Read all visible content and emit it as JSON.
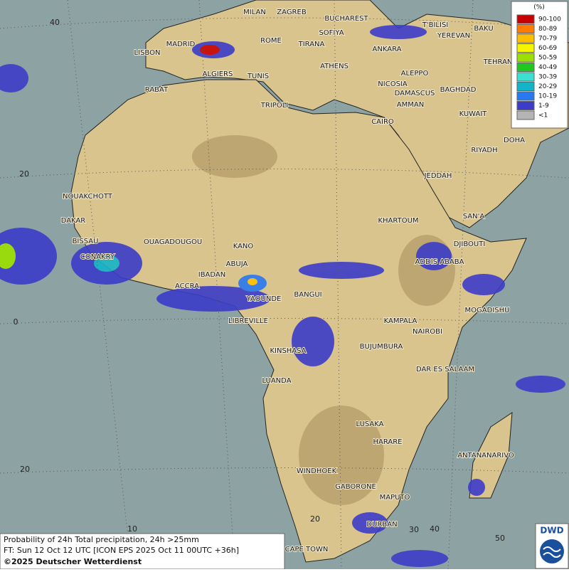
{
  "map": {
    "cities": [
      "MILAN",
      "ZAGREB",
      "BUCHAREST",
      "T'BILISI",
      "BAKU",
      "ROME",
      "SOFIYA",
      "YEREVAN",
      "MADRID",
      "TIRANA",
      "ANKARA",
      "LISBON",
      "TEHRAN",
      "ATHENS",
      "ALGIERS",
      "TUNIS",
      "ALEPPO",
      "RABAT",
      "NICOSIA",
      "BAGHDAD",
      "DAMASCUS",
      "TRIPOLI",
      "AMMAN",
      "KUWAIT",
      "CAIRO",
      "DOHA",
      "RIYADH",
      "JEDDAH",
      "NOUAKCHOTT",
      "SAN'A",
      "DAKAR",
      "KHARTOUM",
      "BISSAU",
      "OUAGADOUGOU",
      "DJIBOUTI",
      "KANO",
      "ABUJA",
      "CONAKRY",
      "ADDIS ABABA",
      "IBADAN",
      "ACCRA",
      "YAOUNDE",
      "BANGUI",
      "MOGADISHU",
      "KAMPALA",
      "LIBREVILLE",
      "NAIROBI",
      "BUJUMBURA",
      "KINSHASA",
      "DAR ES SALAAM",
      "LUANDA",
      "LUSAKA",
      "HARARE",
      "ANTANANARIVO",
      "WINDHOEK",
      "GABORONE",
      "MAPUTO",
      "DURBAN",
      "CAPE TOWN"
    ],
    "grid": {
      "lat_labels": [
        40,
        20,
        0,
        20
      ],
      "lon_labels": [
        10,
        20,
        30,
        40,
        50
      ]
    }
  },
  "legend": {
    "title": "(%)",
    "entries": [
      {
        "label": "90-100",
        "color": "#c80000"
      },
      {
        "label": "80-89",
        "color": "#ff7c00"
      },
      {
        "label": "70-79",
        "color": "#ffbf00"
      },
      {
        "label": "60-69",
        "color": "#f5f500"
      },
      {
        "label": "50-59",
        "color": "#9be000"
      },
      {
        "label": "40-49",
        "color": "#1ec81e"
      },
      {
        "label": "30-39",
        "color": "#3ce0d2"
      },
      {
        "label": "20-29",
        "color": "#14b4c8"
      },
      {
        "label": "10-19",
        "color": "#2878f0"
      },
      {
        "label": "1-9",
        "color": "#3c3cc8"
      },
      {
        "label": "<1",
        "color": "#b4b4b4"
      }
    ]
  },
  "footer": {
    "lines": [
      "Probability of 24h Total precipitation, 24h >25mm",
      "FT: Sun 12 Oct 12 UTC [ICON EPS 2025 Oct 11 00UTC +36h]",
      "©2025 Deutscher Wetterdienst"
    ]
  },
  "logo": "DWD"
}
